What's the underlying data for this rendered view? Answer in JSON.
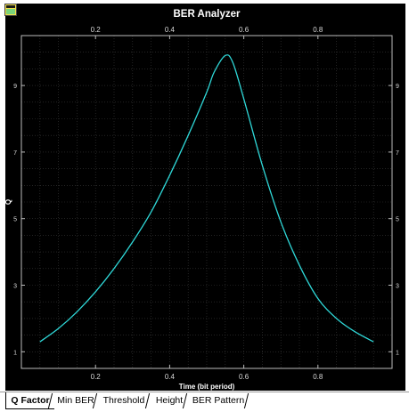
{
  "app": {
    "icon": "app-window-icon"
  },
  "colors": {
    "background": "#000000",
    "grid": "#3a3a3a",
    "axis": "#bdbdbd",
    "curve": "#2fd8d8",
    "text": "#d9d9d9"
  },
  "tabs": [
    {
      "label": "Q Factor",
      "active": true
    },
    {
      "label": "Min BER",
      "active": false
    },
    {
      "label": "Threshold",
      "active": false
    },
    {
      "label": "Height",
      "active": false
    },
    {
      "label": "BER Pattern",
      "active": false
    }
  ],
  "chart_data": {
    "type": "line",
    "title": "BER Analyzer",
    "xlabel": "Time (bit period)",
    "ylabel": "Q",
    "xlim": [
      0,
      1
    ],
    "ylim": [
      0.5,
      10.5
    ],
    "xticks": [
      0.2,
      0.4,
      0.6,
      0.8
    ],
    "yticks": [
      1,
      3,
      5,
      7,
      9
    ],
    "grid": true,
    "series": [
      {
        "x": [
          0.05,
          0.1,
          0.15,
          0.2,
          0.25,
          0.3,
          0.35,
          0.4,
          0.45,
          0.5,
          0.52,
          0.55,
          0.57,
          0.6,
          0.65,
          0.7,
          0.75,
          0.8,
          0.85,
          0.9,
          0.95
        ],
        "y": [
          1.3,
          1.7,
          2.2,
          2.8,
          3.5,
          4.3,
          5.2,
          6.3,
          7.5,
          8.8,
          9.4,
          9.9,
          9.7,
          8.6,
          6.6,
          4.9,
          3.6,
          2.6,
          2.0,
          1.6,
          1.3
        ]
      }
    ]
  }
}
